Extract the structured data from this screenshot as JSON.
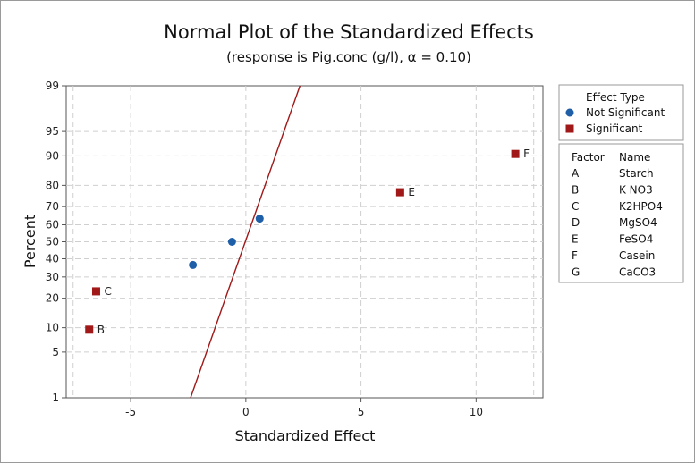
{
  "chart_data": {
    "type": "scatter",
    "title": "Normal Plot of the Standardized Effects",
    "subtitle": "(response is Pig.conc  (g/l), α = 0.10)",
    "xlabel": "Standardized Effect",
    "ylabel": "Percent",
    "xlim": [
      -7.8,
      12.9
    ],
    "xticks": [
      -5,
      0,
      5,
      10
    ],
    "yticks": [
      1,
      5,
      10,
      20,
      30,
      40,
      50,
      60,
      70,
      80,
      90,
      95,
      99
    ],
    "yscale": "normal-probability",
    "grid": true,
    "legend_position": "right",
    "fit_line": {
      "x": [
        -2.4,
        2.35
      ],
      "percent": [
        1,
        99
      ],
      "color": "#a01818"
    },
    "series": [
      {
        "name": "Not Significant",
        "marker": "circle",
        "color": "#1f5fa8",
        "points": [
          {
            "x": -2.3,
            "percent": 36.5
          },
          {
            "x": -0.6,
            "percent": 50
          },
          {
            "x": 0.6,
            "percent": 63.5
          }
        ]
      },
      {
        "name": "Significant",
        "marker": "square",
        "color": "#a01818",
        "points": [
          {
            "x": -6.8,
            "percent": 9.5,
            "label": "B"
          },
          {
            "x": -6.5,
            "percent": 23,
            "label": "C"
          },
          {
            "x": 6.7,
            "percent": 77,
            "label": "E"
          },
          {
            "x": 11.7,
            "percent": 90.5,
            "label": "F"
          }
        ]
      }
    ],
    "legend": {
      "effect_type_title": "Effect Type",
      "factor_header": "Factor",
      "name_header": "Name",
      "factors": [
        {
          "factor": "A",
          "name": "Starch"
        },
        {
          "factor": "B",
          "name": "K NO3"
        },
        {
          "factor": "C",
          "name": "K2HPO4"
        },
        {
          "factor": "D",
          "name": "MgSO4"
        },
        {
          "factor": "E",
          "name": "FeSO4"
        },
        {
          "factor": "F",
          "name": "Casein"
        },
        {
          "factor": "G",
          "name": "CaCO3"
        }
      ]
    }
  }
}
